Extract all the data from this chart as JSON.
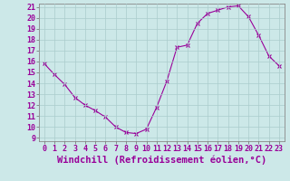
{
  "x": [
    0,
    1,
    2,
    3,
    4,
    5,
    6,
    7,
    8,
    9,
    10,
    11,
    12,
    13,
    14,
    15,
    16,
    17,
    18,
    19,
    20,
    21,
    22,
    23
  ],
  "y": [
    15.8,
    14.8,
    13.9,
    12.7,
    12.0,
    11.5,
    10.9,
    10.0,
    9.5,
    9.4,
    9.8,
    11.8,
    14.2,
    17.3,
    17.5,
    19.5,
    20.4,
    20.7,
    21.0,
    21.1,
    20.1,
    18.4,
    16.5,
    15.6
  ],
  "line_color": "#990099",
  "marker": "x",
  "marker_size": 3,
  "marker_linewidth": 0.8,
  "bg_color": "#cce8e8",
  "grid_color": "#aacccc",
  "xlabel": "Windchill (Refroidissement éolien,°C)",
  "xlabel_fontsize": 7.5,
  "ylim": [
    9,
    21
  ],
  "xlim": [
    -0.5,
    23.5
  ],
  "yticks": [
    9,
    10,
    11,
    12,
    13,
    14,
    15,
    16,
    17,
    18,
    19,
    20,
    21
  ],
  "xticks": [
    0,
    1,
    2,
    3,
    4,
    5,
    6,
    7,
    8,
    9,
    10,
    11,
    12,
    13,
    14,
    15,
    16,
    17,
    18,
    19,
    20,
    21,
    22,
    23
  ],
  "tick_fontsize": 6,
  "line_width": 0.8
}
